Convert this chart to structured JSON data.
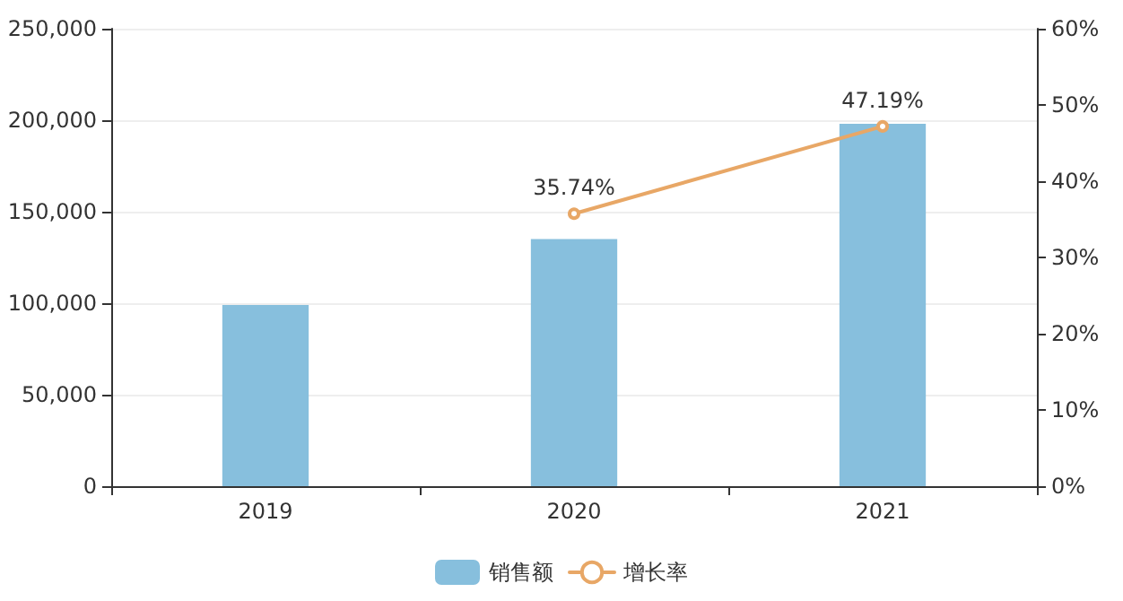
{
  "chart_data": {
    "type": "bar",
    "categories": [
      "2019",
      "2020",
      "2021"
    ],
    "series": [
      {
        "name": "销售额",
        "color": "#87bfdd",
        "values": [
          99000,
          135000,
          198000
        ]
      },
      {
        "name": "增长率",
        "type": "line",
        "axis": "y2",
        "color": "#e8a766",
        "values": [
          null,
          35.74,
          47.19
        ],
        "value_labels": [
          null,
          "35.74%",
          "47.19%"
        ]
      }
    ],
    "ylim": [
      0,
      250000
    ],
    "yticks": [
      {
        "value": 0,
        "label": "0"
      },
      {
        "value": 50000,
        "label": "50,000"
      },
      {
        "value": 100000,
        "label": "100,000"
      },
      {
        "value": 150000,
        "label": "150,000"
      },
      {
        "value": 200000,
        "label": "200,000"
      },
      {
        "value": 250000,
        "label": "250,000"
      }
    ],
    "y2lim": [
      0,
      60
    ],
    "y2ticks": [
      {
        "value": 0,
        "label": "0%"
      },
      {
        "value": 10,
        "label": "10%"
      },
      {
        "value": 20,
        "label": "20%"
      },
      {
        "value": 30,
        "label": "30%"
      },
      {
        "value": 40,
        "label": "40%"
      },
      {
        "value": 50,
        "label": "50%"
      },
      {
        "value": 60,
        "label": "60%"
      }
    ],
    "grid": "y",
    "legend": "bottom",
    "marker": "circle",
    "line_style": "solid"
  }
}
